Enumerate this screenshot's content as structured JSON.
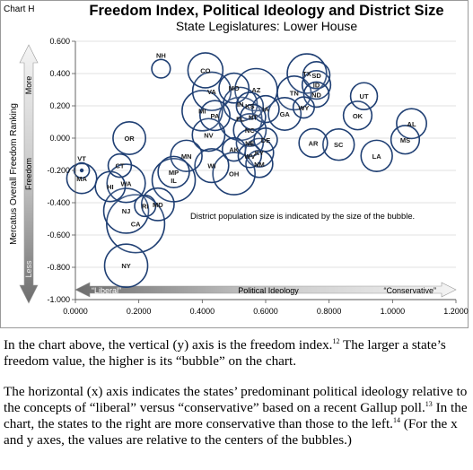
{
  "chart_data": {
    "type": "scatter",
    "chart_label": "Chart H",
    "title": "Freedom Index, Political Ideology and District Size",
    "subtitle": "State Legislatures: Lower House",
    "ylabel": "Mercatus Overall Freedom Ranking",
    "xlabel": "Political Ideology",
    "x_side_labels": {
      "left": "“Liberal”",
      "right": "“Conservative”"
    },
    "y_side_labels": {
      "top": "More",
      "middle": "Freedom",
      "bottom": "Less"
    },
    "xlim": [
      0,
      1.2
    ],
    "ylim": [
      -1.0,
      0.6
    ],
    "x_ticks": [
      "0.0000",
      "0.2000",
      "0.4000",
      "0.6000",
      "0.8000",
      "1.0000",
      "1.2000"
    ],
    "y_ticks": [
      "0.600",
      "0.400",
      "0.200",
      "0.000",
      "-0.200",
      "-0.400",
      "-0.600",
      "-0.800",
      "-1.000"
    ],
    "annotation": "District population size is indicated by the size of the bubble.",
    "grid": true,
    "bubble_color": "#1f3f73",
    "bubbles": [
      {
        "state": "NH",
        "x": 0.27,
        "y": 0.43,
        "size": 0.1
      },
      {
        "state": "CO",
        "x": 0.41,
        "y": 0.42,
        "size": 0.6
      },
      {
        "state": "MO",
        "x": 0.5,
        "y": 0.31,
        "size": 0.4
      },
      {
        "state": "AZ",
        "x": 0.57,
        "y": 0.3,
        "size": 0.95
      },
      {
        "state": "VA",
        "x": 0.43,
        "y": 0.29,
        "size": 0.75
      },
      {
        "state": "TX",
        "x": 0.73,
        "y": 0.4,
        "size": 0.8
      },
      {
        "state": "SD",
        "x": 0.76,
        "y": 0.39,
        "size": 0.3
      },
      {
        "state": "ID",
        "x": 0.76,
        "y": 0.33,
        "size": 0.35
      },
      {
        "state": "TN",
        "x": 0.69,
        "y": 0.28,
        "size": 0.55
      },
      {
        "state": "ND",
        "x": 0.76,
        "y": 0.27,
        "size": 0.25
      },
      {
        "state": "UT",
        "x": 0.91,
        "y": 0.26,
        "size": 0.3
      },
      {
        "state": "WY",
        "x": 0.72,
        "y": 0.19,
        "size": 0.15
      },
      {
        "state": "IN",
        "x": 0.52,
        "y": 0.21,
        "size": 0.55
      },
      {
        "state": "KS",
        "x": 0.55,
        "y": 0.2,
        "size": 0.3
      },
      {
        "state": "MI",
        "x": 0.4,
        "y": 0.17,
        "size": 0.85
      },
      {
        "state": "IA",
        "x": 0.6,
        "y": 0.18,
        "size": 0.3
      },
      {
        "state": "GA",
        "x": 0.66,
        "y": 0.15,
        "size": 0.5
      },
      {
        "state": "OK",
        "x": 0.89,
        "y": 0.14,
        "size": 0.35
      },
      {
        "state": "PA",
        "x": 0.44,
        "y": 0.14,
        "size": 0.4
      },
      {
        "state": "FL",
        "x": 0.52,
        "y": 0.12,
        "size": 1.0
      },
      {
        "state": "NT",
        "x": 0.56,
        "y": 0.13,
        "size": 0.25
      },
      {
        "state": "AL",
        "x": 1.06,
        "y": 0.09,
        "size": 0.4
      },
      {
        "state": "NC",
        "x": 0.55,
        "y": 0.05,
        "size": 0.5
      },
      {
        "state": "NV",
        "x": 0.42,
        "y": 0.02,
        "size": 0.5
      },
      {
        "state": "DE",
        "x": 0.6,
        "y": -0.01,
        "size": 0.2
      },
      {
        "state": "NE",
        "x": 0.55,
        "y": -0.03,
        "size": 0.3
      },
      {
        "state": "OR",
        "x": 0.17,
        "y": 0.0,
        "size": 0.5
      },
      {
        "state": "MS",
        "x": 1.04,
        "y": -0.01,
        "size": 0.35
      },
      {
        "state": "AR",
        "x": 0.75,
        "y": -0.03,
        "size": 0.35
      },
      {
        "state": "SC",
        "x": 0.83,
        "y": -0.04,
        "size": 0.45
      },
      {
        "state": "AK",
        "x": 0.5,
        "y": -0.07,
        "size": 0.2
      },
      {
        "state": "WV",
        "x": 0.55,
        "y": -0.11,
        "size": 0.2
      },
      {
        "state": "KY",
        "x": 0.58,
        "y": -0.09,
        "size": 0.35
      },
      {
        "state": "LA",
        "x": 0.95,
        "y": -0.11,
        "size": 0.45
      },
      {
        "state": "MN",
        "x": 0.35,
        "y": -0.11,
        "size": 0.45
      },
      {
        "state": "NM",
        "x": 0.58,
        "y": -0.16,
        "size": 0.3
      },
      {
        "state": "WI",
        "x": 0.43,
        "y": -0.17,
        "size": 0.55
      },
      {
        "state": "OH",
        "x": 0.5,
        "y": -0.22,
        "size": 0.95
      },
      {
        "state": "MP",
        "x": 0.31,
        "y": -0.21,
        "size": 0.45
      },
      {
        "state": "IL",
        "x": 0.31,
        "y": -0.26,
        "size": 1.0
      },
      {
        "state": "VT",
        "x": 0.02,
        "y": -0.2,
        "size": 0.05
      },
      {
        "state": "MA",
        "x": 0.02,
        "y": -0.25,
        "size": 0.4
      },
      {
        "state": "CT",
        "x": 0.14,
        "y": -0.17,
        "size": 0.2
      },
      {
        "state": "WA",
        "x": 0.16,
        "y": -0.28,
        "size": 0.75
      },
      {
        "state": "HI",
        "x": 0.11,
        "y": -0.3,
        "size": 0.4
      },
      {
        "state": "RI",
        "x": 0.22,
        "y": -0.42,
        "size": 0.15
      },
      {
        "state": "MD",
        "x": 0.26,
        "y": -0.41,
        "size": 0.5
      },
      {
        "state": "NJ",
        "x": 0.16,
        "y": -0.45,
        "size": 1.1
      },
      {
        "state": "CA",
        "x": 0.19,
        "y": -0.53,
        "size": 2.0
      },
      {
        "state": "NY",
        "x": 0.16,
        "y": -0.79,
        "size": 1.0
      }
    ]
  },
  "caption": {
    "p1": "In the chart above, the vertical (y) axis is the freedom index.",
    "p1_fn": "12",
    "p1_b": " The larger a state’s freedom value, the higher is its “bubble” on the chart.",
    "p2_a": "The horizontal (x) axis indicates the states’ predominant political ideology relative to the concepts of “liberal” versus “conservative” based on a recent Gallup poll.",
    "p2_fn1": "13",
    "p2_b": " In the chart, the states to the right are more conservative than those to the left.",
    "p2_fn2": "14",
    "p2_c": " (For the x and y axes, the values are relative to the centers of the bubbles.)"
  }
}
